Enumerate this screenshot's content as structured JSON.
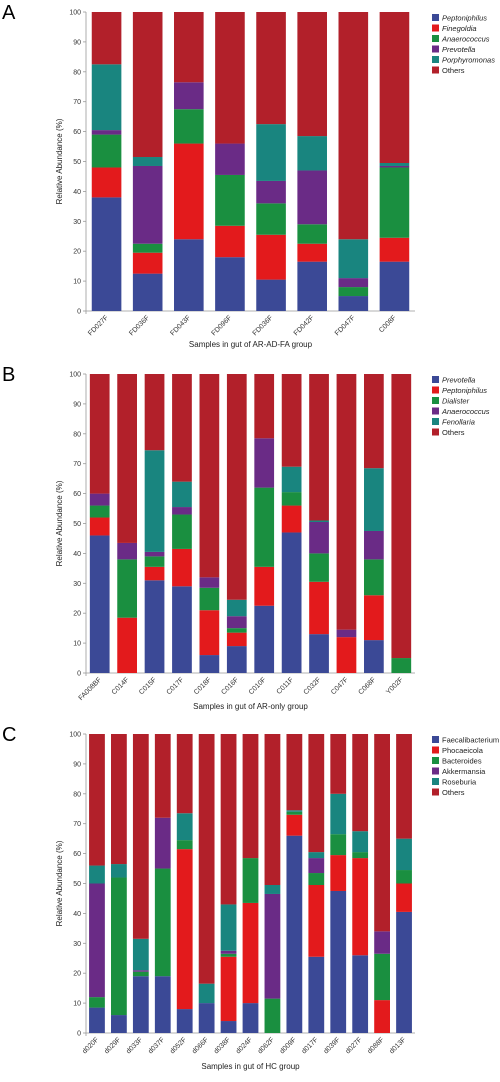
{
  "chart_data": [
    {
      "panel": "A",
      "type": "bar",
      "stacked": true,
      "xlabel": "Samples in gut of AR-AD-FA group",
      "ylabel": "Relative Abundance (%)",
      "ylim": [
        0,
        100
      ],
      "yticks": [
        0,
        10,
        20,
        30,
        40,
        50,
        60,
        70,
        80,
        90,
        100
      ],
      "legend_position": "top-right",
      "categories": [
        "FD027F",
        "FD036F",
        "FD043F",
        "FD096F",
        "FD036F",
        "FD042F",
        "FD047F",
        "C008F"
      ],
      "series": [
        {
          "name": "Peptoniphilus",
          "italic": true,
          "color": "#3b4996",
          "values": [
            38,
            12.5,
            24,
            18,
            10.5,
            16.5,
            5,
            16.5
          ]
        },
        {
          "name": "Finegoldia",
          "italic": true,
          "color": "#e31a1c",
          "values": [
            10,
            7,
            32,
            10.5,
            15,
            6,
            0,
            8
          ]
        },
        {
          "name": "Anaerococcus",
          "italic": true,
          "color": "#1a8f40",
          "values": [
            11,
            3,
            11.5,
            17,
            10.5,
            6.5,
            3,
            23.5
          ]
        },
        {
          "name": "Prevotella",
          "italic": true,
          "color": "#6a2b86",
          "values": [
            1.5,
            26,
            9,
            10.5,
            7.5,
            18,
            3,
            0.5
          ]
        },
        {
          "name": "Porphyromonas",
          "italic": true,
          "color": "#19857f",
          "values": [
            22,
            3,
            0,
            0,
            19,
            11.5,
            13,
            1
          ]
        },
        {
          "name": "Others",
          "italic": false,
          "color": "#b2202a",
          "values": [
            17.5,
            48.5,
            23.5,
            44,
            37.5,
            41.5,
            76,
            50.5
          ]
        }
      ]
    },
    {
      "panel": "B",
      "type": "bar",
      "stacked": true,
      "xlabel": "Samples in gut of AR-only group",
      "ylabel": "Relative Abundance (%)",
      "ylim": [
        0,
        100
      ],
      "yticks": [
        0,
        10,
        20,
        30,
        40,
        50,
        60,
        70,
        80,
        90,
        100
      ],
      "legend_position": "top-right",
      "categories": [
        "FA008BF",
        "C014F",
        "C015F",
        "C017F",
        "C018F",
        "C016F",
        "C010F",
        "C011F",
        "C032F",
        "C047F",
        "C068F",
        "Y002F"
      ],
      "series": [
        {
          "name": "Prevotella",
          "italic": true,
          "color": "#3b4996",
          "values": [
            46,
            0,
            31,
            29,
            6,
            9,
            22.5,
            47,
            13,
            0,
            11,
            0
          ]
        },
        {
          "name": "Peptoniphilus",
          "italic": true,
          "color": "#e31a1c",
          "values": [
            6,
            18.5,
            4.5,
            12.5,
            15,
            4.5,
            13,
            9,
            17.5,
            12,
            15,
            0
          ]
        },
        {
          "name": "Dialister",
          "italic": true,
          "color": "#1a8f40",
          "values": [
            4,
            19.5,
            3.5,
            11.5,
            7.5,
            1.5,
            26.5,
            4.5,
            9.5,
            0,
            12,
            5
          ]
        },
        {
          "name": "Anaerococcus",
          "italic": true,
          "color": "#6a2b86",
          "values": [
            4,
            5.5,
            1.5,
            2.5,
            3.5,
            4,
            16.5,
            0,
            10.5,
            2.5,
            9.5,
            0
          ]
        },
        {
          "name": "Fenollaria",
          "italic": true,
          "color": "#19857f",
          "values": [
            0,
            0,
            34,
            8.5,
            0,
            5.5,
            0,
            8.5,
            0.5,
            0,
            21,
            0
          ]
        },
        {
          "name": "Others",
          "italic": false,
          "color": "#b2202a",
          "values": [
            40,
            56.5,
            25.5,
            36,
            68,
            75.5,
            21.5,
            31,
            49,
            85.5,
            31.5,
            95
          ]
        }
      ]
    },
    {
      "panel": "C",
      "type": "bar",
      "stacked": true,
      "xlabel": "Samples in gut of HC group",
      "ylabel": "Relative Abundance (%)",
      "ylim": [
        0,
        100
      ],
      "yticks": [
        0,
        10,
        20,
        30,
        40,
        50,
        60,
        70,
        80,
        90,
        100
      ],
      "legend_position": "top-right",
      "categories": [
        "d020F",
        "d029F",
        "d033F",
        "d037F",
        "d052F",
        "d066F",
        "d038F",
        "d024F",
        "d062F",
        "d009F",
        "d017F",
        "d039F",
        "d027F",
        "d088F",
        "d013F"
      ],
      "series": [
        {
          "name": "Faecalibacterium",
          "italic": false,
          "color": "#3b4996",
          "values": [
            8.5,
            6,
            19,
            19,
            8,
            10,
            4,
            10,
            0,
            66,
            25.5,
            47.5,
            26,
            0,
            40.5
          ]
        },
        {
          "name": "Phocaeicola",
          "italic": false,
          "color": "#e31a1c",
          "values": [
            0,
            0,
            0,
            0,
            53.5,
            0,
            21.5,
            33.5,
            0,
            7,
            24,
            12,
            32.5,
            11,
            9.5
          ]
        },
        {
          "name": "Bacteroides",
          "italic": false,
          "color": "#1a8f40",
          "values": [
            3.5,
            46,
            1.5,
            36,
            3,
            0,
            1,
            15,
            11.5,
            1,
            4,
            7,
            2,
            15.5,
            4.5
          ]
        },
        {
          "name": "Akkermansia",
          "italic": false,
          "color": "#6a2b86",
          "values": [
            38,
            0,
            0.5,
            17,
            0,
            0,
            1,
            0,
            35,
            0,
            5,
            0,
            0,
            7.5,
            0
          ]
        },
        {
          "name": "Roseburia",
          "italic": false,
          "color": "#19857f",
          "values": [
            6,
            4.5,
            10.5,
            0,
            9,
            6.5,
            15.5,
            0,
            3,
            0.5,
            2,
            13.5,
            7,
            0,
            10.5
          ]
        },
        {
          "name": "Others",
          "italic": false,
          "color": "#b2202a",
          "values": [
            44,
            43.5,
            68.5,
            28,
            26.5,
            83.5,
            57,
            41.5,
            50.5,
            25.5,
            39.5,
            20,
            32.5,
            66,
            35
          ]
        }
      ]
    }
  ],
  "panels": [
    {
      "letter": "A"
    },
    {
      "letter": "B"
    },
    {
      "letter": "C"
    }
  ]
}
